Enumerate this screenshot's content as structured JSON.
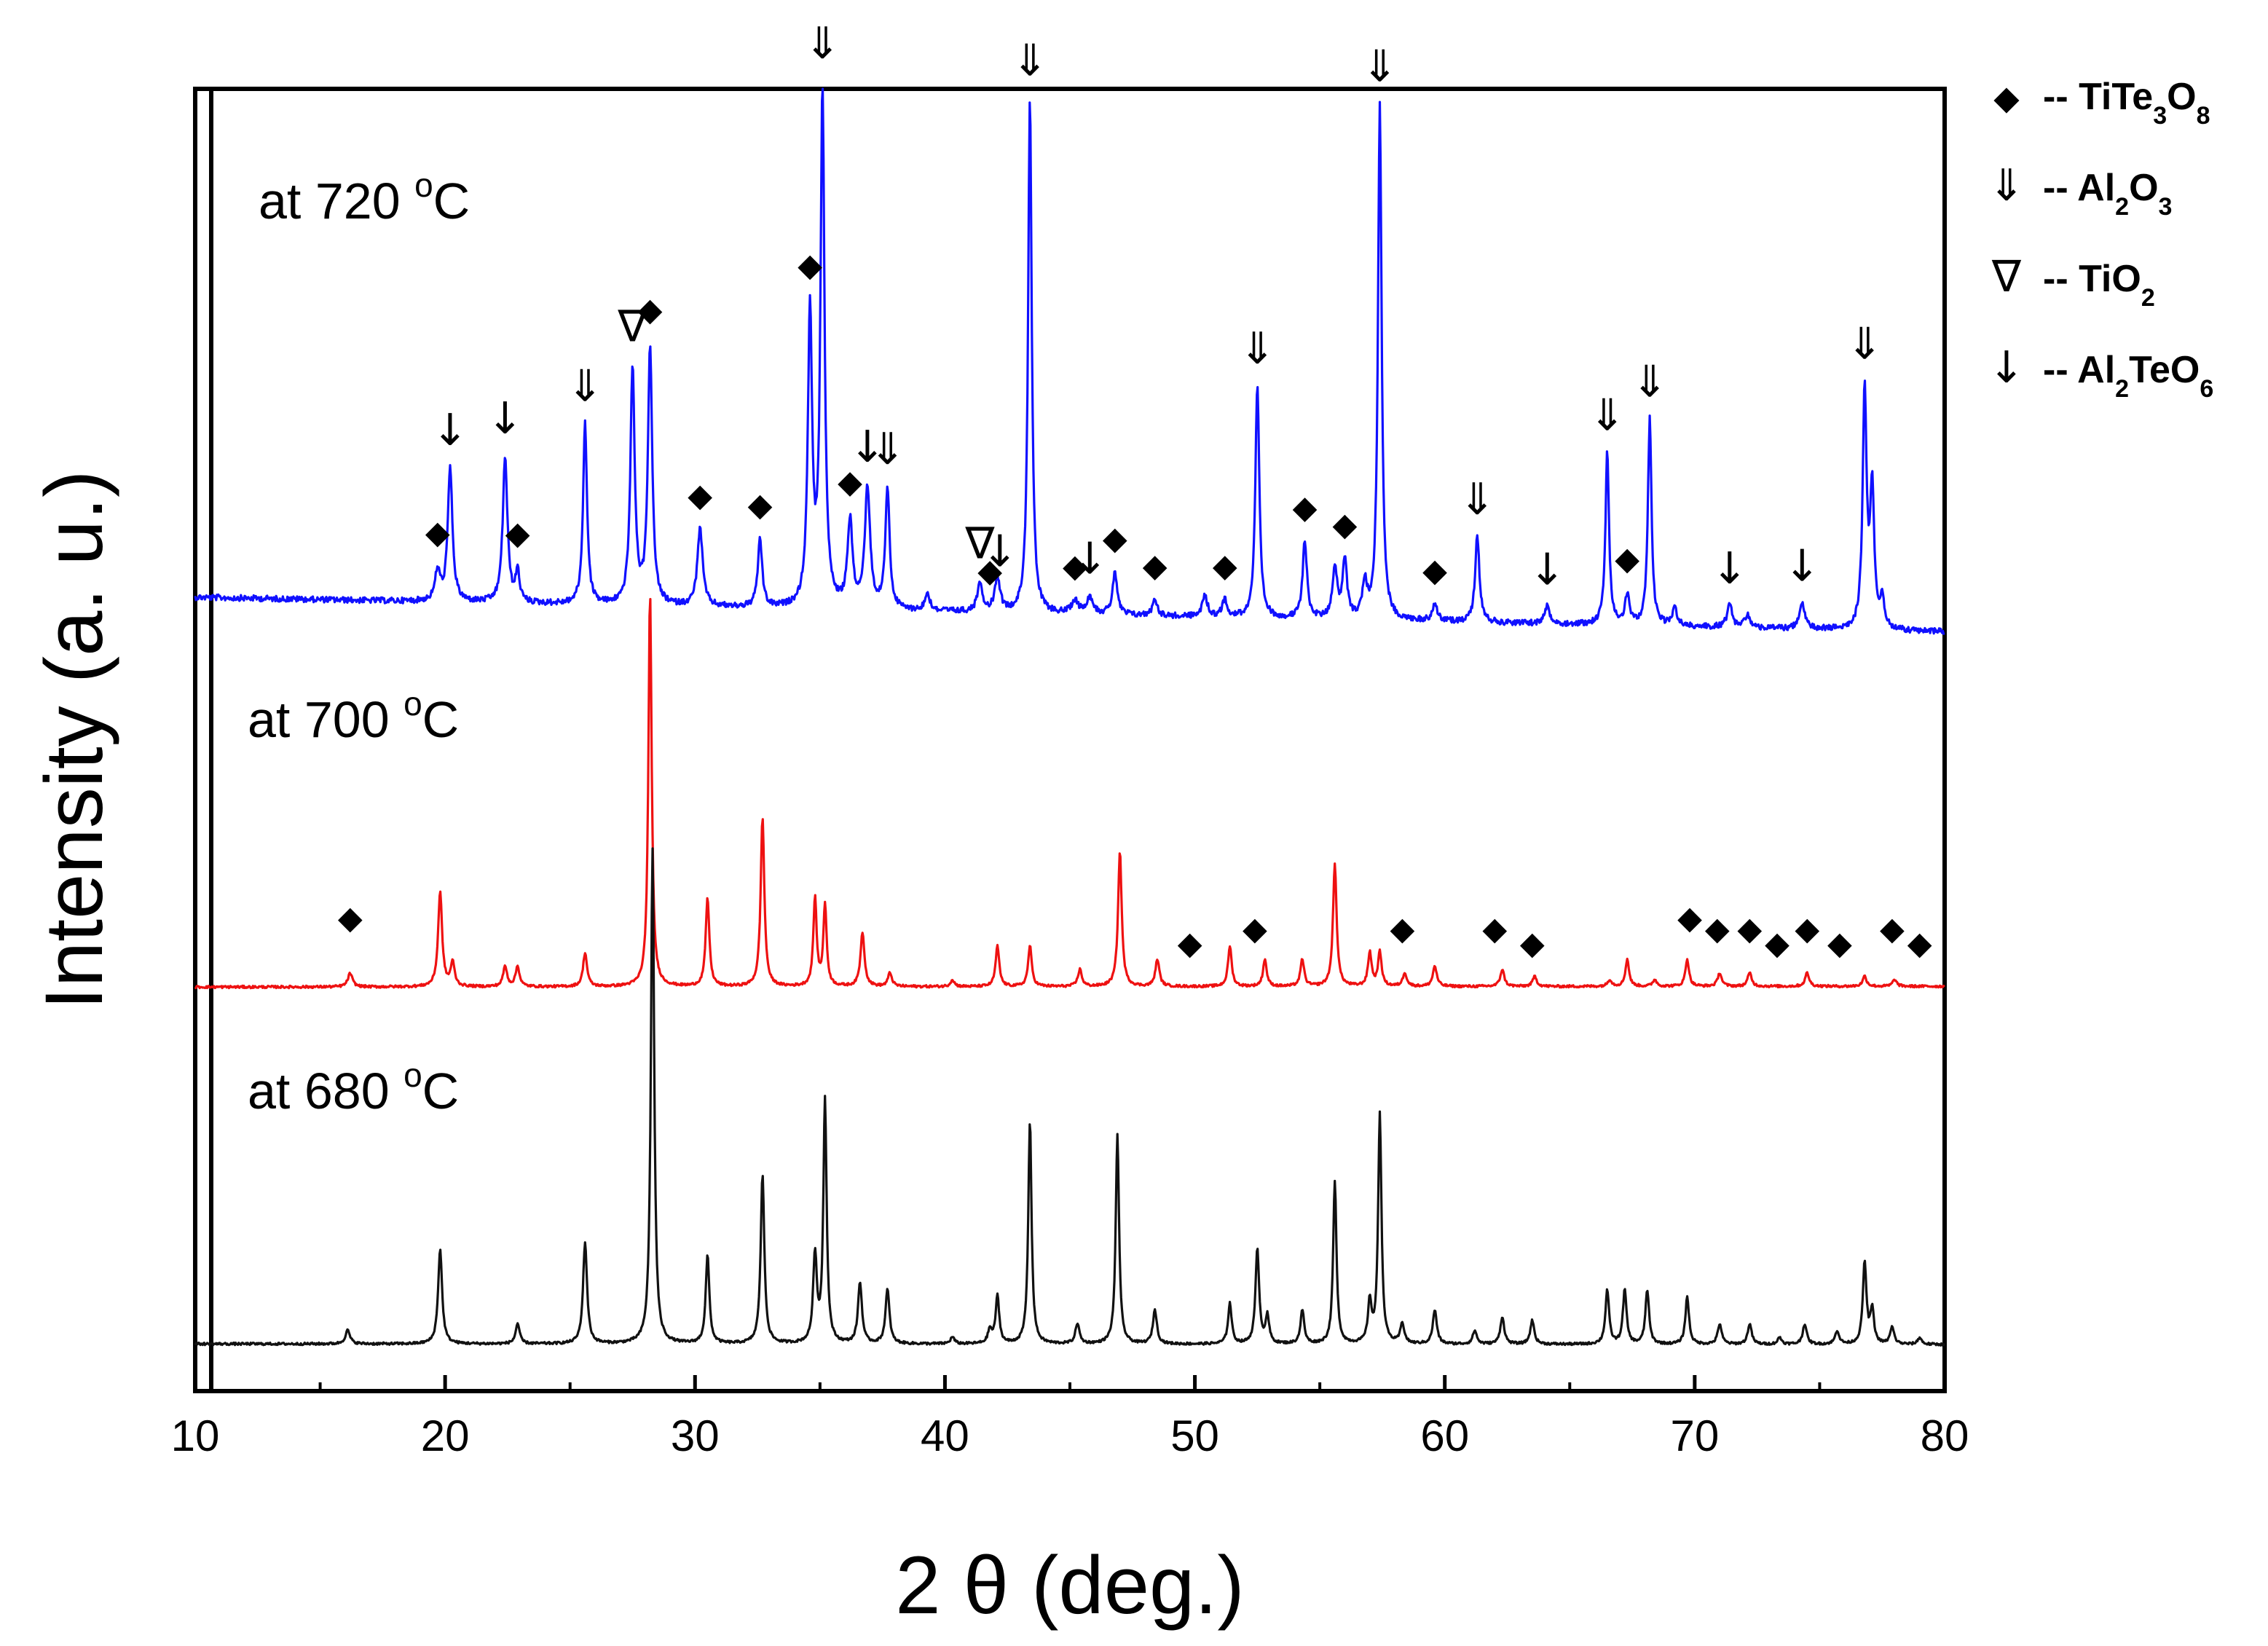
{
  "chart_data": {
    "type": "line",
    "title": "",
    "xlabel": "2 θ (deg.)",
    "ylabel": "Intensity (a. u.)",
    "xlim": [
      10,
      80
    ],
    "xticks": [
      10,
      20,
      30,
      40,
      50,
      60,
      70,
      80
    ],
    "yticks_shown": false,
    "grid": false,
    "legend_position": "top-right-outside",
    "legend": [
      {
        "symbol": "◆",
        "text": "-- TiTe",
        "sub1": "3",
        "mid": "O",
        "sub2": "8",
        "phase": "TiTe3O8"
      },
      {
        "symbol": "⇓",
        "text": "-- Al",
        "sub1": "2",
        "mid": "O",
        "sub2": "3",
        "phase": "Al2O3"
      },
      {
        "symbol": "∇",
        "text": "-- TiO",
        "sub1": "",
        "mid": "",
        "sub2": "2",
        "phase": "TiO2"
      },
      {
        "symbol": "↓",
        "text": "-- Al",
        "sub1": "2",
        "mid": "TeO",
        "sub2": "6",
        "phase": "Al2TeO6"
      }
    ],
    "series": [
      {
        "name": "at 720 °C",
        "label_prefix": "at 720 ",
        "label_sup": "o",
        "label_suffix": "C",
        "color": "#1010ff",
        "baseline": 0.985,
        "baseline_end": 0.972,
        "peaks": [
          [
            19.7,
            0.07,
            0.15
          ],
          [
            20.2,
            0.31,
            0.14
          ],
          [
            22.4,
            0.34,
            0.14
          ],
          [
            22.9,
            0.07,
            0.12
          ],
          [
            25.6,
            0.42,
            0.12
          ],
          [
            27.5,
            0.55,
            0.13
          ],
          [
            28.2,
            0.6,
            0.13
          ],
          [
            30.2,
            0.18,
            0.16
          ],
          [
            32.6,
            0.16,
            0.13
          ],
          [
            34.6,
            0.68,
            0.13
          ],
          [
            35.1,
            1.2,
            0.12
          ],
          [
            36.2,
            0.2,
            0.15
          ],
          [
            36.9,
            0.28,
            0.16
          ],
          [
            37.7,
            0.28,
            0.13
          ],
          [
            39.3,
            0.04,
            0.15
          ],
          [
            41.4,
            0.07,
            0.15
          ],
          [
            42.1,
            0.08,
            0.16
          ],
          [
            43.4,
            1.2,
            0.11
          ],
          [
            45.2,
            0.03,
            0.2
          ],
          [
            45.8,
            0.04,
            0.2
          ],
          [
            46.8,
            0.1,
            0.14
          ],
          [
            48.4,
            0.04,
            0.14
          ],
          [
            50.4,
            0.05,
            0.15
          ],
          [
            51.2,
            0.04,
            0.15
          ],
          [
            52.5,
            0.54,
            0.12
          ],
          [
            54.4,
            0.18,
            0.13
          ],
          [
            55.6,
            0.12,
            0.14
          ],
          [
            56.0,
            0.13,
            0.14
          ],
          [
            56.8,
            0.08,
            0.14
          ],
          [
            57.4,
            1.2,
            0.11
          ],
          [
            59.6,
            0.04,
            0.15
          ],
          [
            61.3,
            0.2,
            0.13
          ],
          [
            64.1,
            0.04,
            0.15
          ],
          [
            66.5,
            0.4,
            0.11
          ],
          [
            67.3,
            0.07,
            0.13
          ],
          [
            68.2,
            0.48,
            0.11
          ],
          [
            69.2,
            0.04,
            0.15
          ],
          [
            71.4,
            0.05,
            0.16
          ],
          [
            72.1,
            0.03,
            0.15
          ],
          [
            74.3,
            0.06,
            0.15
          ],
          [
            76.8,
            0.55,
            0.12
          ],
          [
            77.1,
            0.32,
            0.12
          ],
          [
            77.5,
            0.07,
            0.13
          ]
        ]
      },
      {
        "name": "at 700 °C",
        "label_prefix": "at 700 ",
        "label_sup": "o",
        "label_suffix": "C",
        "color": "#ee1111",
        "baseline": 0.003,
        "baseline_end": 0.004,
        "peaks": [
          [
            16.2,
            0.02,
            0.14
          ],
          [
            19.8,
            0.14,
            0.12
          ],
          [
            20.3,
            0.035,
            0.12
          ],
          [
            22.4,
            0.03,
            0.12
          ],
          [
            22.9,
            0.03,
            0.12
          ],
          [
            25.6,
            0.05,
            0.12
          ],
          [
            28.2,
            0.58,
            0.1
          ],
          [
            30.5,
            0.13,
            0.11
          ],
          [
            32.7,
            0.25,
            0.11
          ],
          [
            34.8,
            0.13,
            0.1
          ],
          [
            35.2,
            0.12,
            0.1
          ],
          [
            36.7,
            0.08,
            0.12
          ],
          [
            37.8,
            0.02,
            0.12
          ],
          [
            40.3,
            0.01,
            0.12
          ],
          [
            42.1,
            0.06,
            0.11
          ],
          [
            43.4,
            0.06,
            0.11
          ],
          [
            45.4,
            0.025,
            0.12
          ],
          [
            47.0,
            0.2,
            0.11
          ],
          [
            48.5,
            0.04,
            0.12
          ],
          [
            51.4,
            0.06,
            0.11
          ],
          [
            52.8,
            0.04,
            0.11
          ],
          [
            54.3,
            0.04,
            0.11
          ],
          [
            55.6,
            0.18,
            0.11
          ],
          [
            57.0,
            0.05,
            0.11
          ],
          [
            57.4,
            0.05,
            0.11
          ],
          [
            58.4,
            0.02,
            0.12
          ],
          [
            59.6,
            0.03,
            0.12
          ],
          [
            62.3,
            0.025,
            0.12
          ],
          [
            63.6,
            0.015,
            0.12
          ],
          [
            66.6,
            0.01,
            0.12
          ],
          [
            67.3,
            0.04,
            0.11
          ],
          [
            68.4,
            0.01,
            0.12
          ],
          [
            69.7,
            0.04,
            0.11
          ],
          [
            71.0,
            0.02,
            0.12
          ],
          [
            72.2,
            0.02,
            0.12
          ],
          [
            74.5,
            0.02,
            0.12
          ],
          [
            76.8,
            0.015,
            0.12
          ],
          [
            78.0,
            0.01,
            0.12
          ]
        ]
      },
      {
        "name": "at 680 °C",
        "label_prefix": "at 680 ",
        "label_sup": "o",
        "label_suffix": "C",
        "color": "#111111",
        "baseline": 0.003,
        "baseline_end": 0.002,
        "peaks": [
          [
            16.1,
            0.02,
            0.14
          ],
          [
            19.8,
            0.14,
            0.12
          ],
          [
            22.9,
            0.03,
            0.12
          ],
          [
            25.6,
            0.15,
            0.12
          ],
          [
            28.3,
            0.73,
            0.1
          ],
          [
            30.5,
            0.13,
            0.11
          ],
          [
            32.7,
            0.25,
            0.11
          ],
          [
            34.8,
            0.13,
            0.11
          ],
          [
            35.2,
            0.36,
            0.1
          ],
          [
            36.6,
            0.09,
            0.12
          ],
          [
            37.7,
            0.08,
            0.12
          ],
          [
            40.3,
            0.01,
            0.12
          ],
          [
            41.8,
            0.02,
            0.12
          ],
          [
            42.1,
            0.07,
            0.11
          ],
          [
            43.4,
            0.33,
            0.1
          ],
          [
            45.3,
            0.03,
            0.12
          ],
          [
            46.9,
            0.31,
            0.1
          ],
          [
            48.4,
            0.05,
            0.12
          ],
          [
            51.4,
            0.06,
            0.11
          ],
          [
            52.5,
            0.14,
            0.11
          ],
          [
            52.9,
            0.04,
            0.11
          ],
          [
            54.3,
            0.05,
            0.11
          ],
          [
            55.6,
            0.24,
            0.1
          ],
          [
            57.0,
            0.06,
            0.11
          ],
          [
            57.4,
            0.34,
            0.1
          ],
          [
            58.3,
            0.03,
            0.12
          ],
          [
            59.6,
            0.05,
            0.12
          ],
          [
            61.2,
            0.02,
            0.12
          ],
          [
            62.3,
            0.04,
            0.12
          ],
          [
            63.5,
            0.035,
            0.12
          ],
          [
            66.5,
            0.08,
            0.11
          ],
          [
            67.2,
            0.08,
            0.11
          ],
          [
            68.1,
            0.08,
            0.11
          ],
          [
            69.7,
            0.07,
            0.11
          ],
          [
            71.0,
            0.03,
            0.12
          ],
          [
            72.2,
            0.03,
            0.12
          ],
          [
            73.4,
            0.01,
            0.12
          ],
          [
            74.4,
            0.03,
            0.12
          ],
          [
            75.7,
            0.02,
            0.12
          ],
          [
            76.8,
            0.12,
            0.11
          ],
          [
            77.1,
            0.05,
            0.11
          ],
          [
            77.9,
            0.025,
            0.12
          ],
          [
            79.0,
            0.01,
            0.12
          ]
        ]
      }
    ],
    "markers": [
      {
        "phase": "Al2O3",
        "symbol": "⇓",
        "x": [
          25.6,
          35.1,
          43.4,
          52.5,
          57.4,
          61.3,
          66.5,
          68.2,
          76.8,
          37.7
        ],
        "series": "at 720 °C"
      },
      {
        "phase": "Al2TeO6",
        "symbol": "↓",
        "x": [
          20.2,
          22.4,
          36.9,
          42.2,
          45.8,
          64.1,
          71.4,
          74.3
        ],
        "series": "at 720 °C"
      },
      {
        "phase": "TiO2",
        "symbol": "∇",
        "x": [
          27.5,
          41.4
        ],
        "series": "at 720 °C"
      },
      {
        "phase": "TiTe3O8",
        "symbol": "◆",
        "x": [
          19.7,
          22.9,
          28.2,
          30.2,
          32.6,
          34.6,
          36.2,
          41.8,
          45.2,
          46.8,
          48.4,
          51.2,
          54.4,
          56.0,
          59.6,
          67.3
        ],
        "series": "at 720 °C"
      },
      {
        "phase": "TiTe3O8",
        "symbol": "◆",
        "x": [
          16.2,
          49.8,
          52.4,
          58.3,
          62.0,
          63.5,
          69.8,
          70.9,
          72.2,
          73.3,
          74.5,
          75.8,
          77.9,
          79.0
        ],
        "series": "at 700 °C"
      }
    ]
  }
}
